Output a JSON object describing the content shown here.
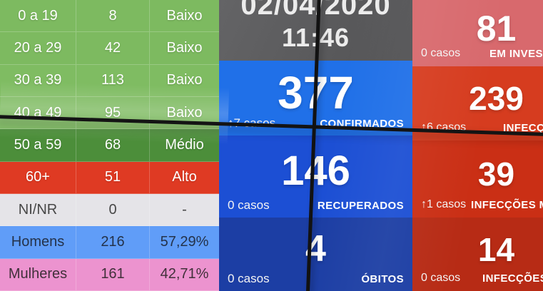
{
  "header": {
    "date": "02/04/2020",
    "time": "11:46"
  },
  "age_table": {
    "rows": [
      {
        "label": "0 a 19",
        "value": "8",
        "level": "Baixo"
      },
      {
        "label": "20 a 29",
        "value": "42",
        "level": "Baixo"
      },
      {
        "label": "30 a 39",
        "value": "113",
        "level": "Baixo"
      },
      {
        "label": "40 a 49",
        "value": "95",
        "level": "Baixo"
      },
      {
        "label": "50 a 59",
        "value": "68",
        "level": "Médio"
      },
      {
        "label": "60+",
        "value": "51",
        "level": "Alto"
      },
      {
        "label": "NI/NR",
        "value": "0",
        "level": "-"
      },
      {
        "label": "Homens",
        "value": "216",
        "level": "57,29%"
      },
      {
        "label": "Mulheres",
        "value": "161",
        "level": "42,71%"
      }
    ]
  },
  "kpi_center": [
    {
      "value": "377",
      "delta": "↑7 casos",
      "label": "CONFIRMADOS"
    },
    {
      "value": "146",
      "delta": "0 casos",
      "label": "RECUPERADOS"
    },
    {
      "value": "4",
      "delta": "0 casos",
      "label": "ÓBITOS"
    }
  ],
  "kpi_right": [
    {
      "value": "81",
      "delta": "0 casos",
      "label": "EM INVEST"
    },
    {
      "value": "239",
      "delta": "↑6 casos",
      "label": "INFECÇÕES"
    },
    {
      "value": "39",
      "delta": "↑1 casos",
      "label": "INFECÇÕES MODER"
    },
    {
      "value": "14",
      "delta": "0 casos",
      "label": "INFECÇÕES GR"
    }
  ],
  "colors": {
    "risk_low_green": "#7DBA60",
    "risk_medium_green": "#4C8E3A",
    "risk_high_red": "#DF3A23",
    "ni_nr_gray": "#E5E4E8",
    "homens_blue": "#609DF8",
    "mulheres_pink": "#EC93CF",
    "datetime_gray": "#58585A",
    "confirmados_blue": "#2070E8",
    "recuperados_blue": "#1C4FD4",
    "obitos_blue": "#1C3EA4",
    "em_invest_red": "#D8696D",
    "infeccoes_red": "#D63C1F",
    "infeccoes_moderadas_red": "#CA2F15",
    "infeccoes_graves_red": "#B72B15"
  }
}
